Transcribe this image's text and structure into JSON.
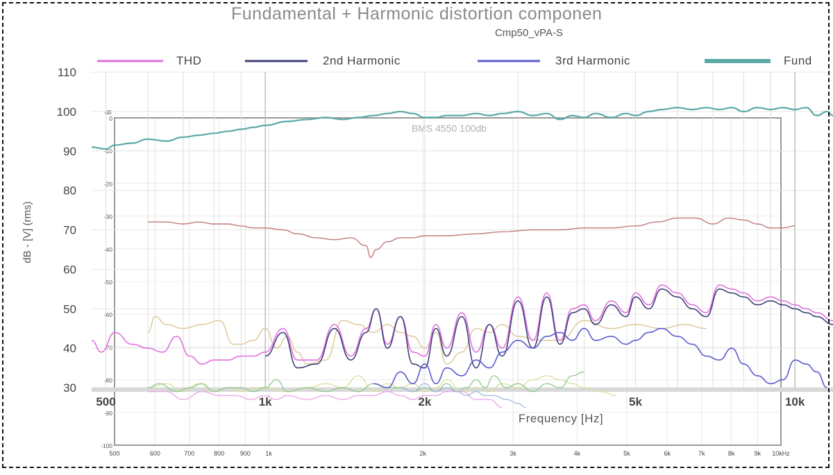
{
  "chart_data": [
    {
      "type": "line",
      "title": "Fundamental + Harmonic distortion componen",
      "subtitle": "Cmp50_vPA-S",
      "xlabel": "Frequency [Hz]",
      "ylabel": "dB - [V] (rms)",
      "x_scale": "log",
      "xlim": [
        470,
        11800
      ],
      "ylim": [
        29,
        110
      ],
      "y_ticks": [
        30,
        40,
        50,
        60,
        70,
        80,
        90,
        100,
        110
      ],
      "x_tick_labels": [
        {
          "value": 500,
          "label": "500"
        },
        {
          "value": 1000,
          "label": "1k"
        },
        {
          "value": 2000,
          "label": "2k"
        },
        {
          "value": 5000,
          "label": "5k"
        },
        {
          "value": 10000,
          "label": "10k"
        }
      ],
      "grid": true,
      "legend_position": "top",
      "series": [
        {
          "name": "THD",
          "color": "#e070e0",
          "x": [
            470,
            490,
            520,
            560,
            600,
            640,
            680,
            720,
            760,
            800,
            850,
            900,
            950,
            1000,
            1080,
            1150,
            1250,
            1350,
            1450,
            1550,
            1620,
            1700,
            1800,
            1900,
            2000,
            2100,
            2200,
            2350,
            2500,
            2650,
            2800,
            3000,
            3200,
            3400,
            3600,
            3800,
            4000,
            4200,
            4500,
            4800,
            5000,
            5300,
            5600,
            6000,
            6400,
            6800,
            7200,
            7600,
            8000,
            8500,
            9000,
            9500,
            10000,
            10500,
            11000,
            11800
          ],
          "y": [
            42,
            39,
            44,
            41,
            40,
            39,
            43,
            38,
            36,
            37,
            37,
            38,
            38,
            39,
            45,
            37,
            37,
            46,
            38,
            45,
            50,
            41,
            48,
            39,
            38,
            46,
            40,
            49,
            39,
            46,
            40,
            53,
            42,
            54,
            42,
            50,
            51,
            47,
            52,
            49,
            54,
            51,
            56,
            54,
            51,
            49,
            56,
            55,
            54,
            52,
            53,
            52,
            51,
            50,
            49,
            47
          ]
        },
        {
          "name": "2nd Harmonic",
          "color": "#3f3f7a",
          "x": [
            1000,
            1080,
            1150,
            1250,
            1350,
            1450,
            1550,
            1620,
            1700,
            1800,
            1900,
            2000,
            2100,
            2200,
            2350,
            2500,
            2650,
            2800,
            3000,
            3200,
            3400,
            3600,
            3800,
            4000,
            4200,
            4500,
            4800,
            5000,
            5300,
            5600,
            6000,
            6400,
            6800,
            7200,
            7600,
            8000,
            8500,
            9000,
            9500,
            10000,
            10500,
            11000,
            11800
          ],
          "y": [
            38,
            44,
            35,
            36,
            45,
            37,
            44,
            50,
            40,
            48,
            36,
            35,
            45,
            38,
            48,
            35,
            46,
            38,
            52,
            40,
            53,
            41,
            49,
            50,
            46,
            51,
            48,
            53,
            50,
            55,
            53,
            50,
            48,
            55,
            54,
            53,
            51,
            52,
            51,
            50,
            49,
            48,
            46
          ]
        },
        {
          "name": "3rd Harmonic",
          "color": "#5a5ad0",
          "x": [
            1600,
            1700,
            1800,
            1900,
            2000,
            2100,
            2200,
            2350,
            2500,
            2650,
            2800,
            3000,
            3200,
            3400,
            3600,
            3800,
            4000,
            4200,
            4500,
            4800,
            5000,
            5300,
            5600,
            6000,
            6400,
            6800,
            7200,
            7600,
            8000,
            8500,
            9000,
            9500,
            10000,
            10500,
            11000,
            11500
          ],
          "y": [
            31,
            30,
            34,
            31,
            36,
            31,
            35,
            33,
            37,
            35,
            39,
            42,
            40,
            43,
            44,
            42,
            45,
            42,
            43,
            41,
            42,
            44,
            45,
            43,
            41,
            38,
            37,
            40,
            36,
            33,
            31,
            32,
            37,
            36,
            34,
            30
          ]
        },
        {
          "name": "Fund",
          "color": "#5aa8a8",
          "x": [
            470,
            500,
            520,
            560,
            600,
            650,
            700,
            750,
            800,
            850,
            900,
            950,
            1000,
            1100,
            1200,
            1300,
            1400,
            1500,
            1600,
            1700,
            1800,
            1900,
            2000,
            2100,
            2200,
            2350,
            2500,
            2650,
            2800,
            3000,
            3200,
            3400,
            3600,
            3800,
            4000,
            4200,
            4500,
            4800,
            5000,
            5300,
            5600,
            6000,
            6400,
            6800,
            7200,
            7600,
            8000,
            8500,
            9000,
            9500,
            10000,
            10500,
            11000,
            11500,
            11800
          ],
          "y": [
            91,
            90.5,
            91.5,
            92,
            93,
            92.5,
            93.5,
            94,
            94.5,
            95,
            95.5,
            96,
            96.5,
            97.5,
            98,
            98.5,
            98,
            98.5,
            99,
            99.5,
            100,
            99.5,
            98.5,
            98.5,
            99,
            99,
            99.5,
            99,
            99.5,
            100,
            99,
            99.5,
            98,
            99,
            98.5,
            99.5,
            98.5,
            99.5,
            99,
            100,
            100.5,
            101,
            100.5,
            101,
            100.5,
            101,
            100,
            101,
            100.5,
            101,
            100.5,
            101,
            99,
            100,
            99
          ]
        },
        {
          "name": "",
          "color": "#b96c6c",
          "x": [
            600,
            650,
            700,
            750,
            800,
            850,
            900,
            950,
            1000,
            1080,
            1150,
            1250,
            1350,
            1450,
            1550,
            1580,
            1620,
            1700,
            1800,
            1900,
            2000,
            2200,
            2500,
            2800,
            3200,
            3600,
            4000,
            4500,
            5000,
            5500,
            6000,
            6500,
            7000,
            7500,
            8000,
            8500,
            9000,
            9500,
            10000
          ],
          "y": [
            72,
            72,
            71.5,
            72,
            71.5,
            71.5,
            71,
            70.5,
            70.5,
            70,
            69,
            68,
            67.5,
            68,
            66,
            63,
            65,
            67,
            68,
            68,
            68.5,
            68.5,
            69,
            69.5,
            70,
            70,
            70.5,
            70.5,
            71,
            72,
            73,
            73,
            71.5,
            73,
            72.5,
            71.5,
            70.5,
            70.5,
            71
          ]
        },
        {
          "name": "",
          "color": "#d8c088",
          "x": [
            600,
            620,
            650,
            700,
            760,
            820,
            870,
            900,
            950,
            1000,
            1050,
            1100,
            1150,
            1200,
            1300,
            1400,
            1500,
            1600,
            1700,
            1800,
            1900,
            2000,
            2100,
            2200,
            2350,
            2500,
            2650,
            2800,
            3000,
            3300,
            3600,
            4000,
            4500,
            5000,
            5600,
            6200,
            6800
          ],
          "y": [
            44,
            48,
            46,
            45,
            46,
            47,
            41,
            41,
            42,
            45,
            40,
            43,
            39,
            36,
            37,
            47,
            46,
            44,
            46,
            44,
            43,
            40,
            44,
            36,
            39,
            45,
            44,
            46,
            43,
            42,
            42,
            47,
            45,
            46,
            45,
            46,
            45
          ]
        },
        {
          "name": "",
          "color": "#d8e098",
          "x": [
            600,
            650,
            700,
            750,
            800,
            850,
            900,
            950,
            1000,
            1100,
            1200,
            1300,
            1400,
            1500,
            1600,
            1700,
            1800,
            1900,
            2000,
            2100,
            2200,
            2350,
            2500,
            2650,
            2800,
            3000,
            3200,
            3400,
            3600,
            3800,
            4000,
            4300,
            4600
          ],
          "y": [
            30,
            31,
            29,
            31,
            29,
            30,
            29,
            30,
            30,
            29,
            30,
            31,
            30,
            33,
            29,
            31,
            30,
            31,
            29,
            30,
            32,
            29,
            30,
            29,
            31,
            30,
            32,
            33,
            32,
            31,
            30,
            29,
            28
          ]
        },
        {
          "name": "",
          "color": "#88c888",
          "x": [
            600,
            630,
            680,
            720,
            760,
            800,
            850,
            900,
            950,
            1000,
            1050,
            1100,
            1200,
            1300,
            1400,
            1500,
            1600,
            1700,
            1800,
            1900,
            2000,
            2100,
            2200,
            2300,
            2400,
            2500,
            2600,
            2700,
            2850,
            3000,
            3200,
            3400,
            3600,
            3800,
            4000
          ],
          "y": [
            30,
            31,
            29,
            30,
            31,
            29,
            30,
            30,
            29,
            30,
            32,
            29,
            30,
            29,
            30,
            29,
            31,
            30,
            30,
            29,
            30,
            29,
            31,
            29,
            30,
            32,
            30,
            33,
            30,
            31,
            29,
            31,
            30,
            33,
            34
          ]
        },
        {
          "name": "",
          "color": "#e8a0e8",
          "x": [
            600,
            650,
            700,
            760,
            820,
            880,
            940,
            1000,
            1050,
            1100,
            1200,
            1300,
            1400,
            1500,
            1600,
            1700,
            1800,
            1900,
            2000,
            2100,
            2200,
            2350,
            2500,
            2650,
            2800
          ],
          "y": [
            29,
            29,
            27,
            29,
            28,
            28,
            27,
            28,
            27,
            28,
            27,
            28,
            27,
            28,
            28,
            29,
            28,
            27,
            28,
            28,
            29,
            29,
            27,
            27,
            25
          ]
        },
        {
          "name": "",
          "color": "#a0b4e0",
          "x": [
            1800,
            1900,
            2000,
            2100,
            2200,
            2300,
            2400,
            2500,
            2600,
            2700,
            2850,
            3000,
            3100
          ],
          "y": [
            30,
            29,
            31,
            29,
            30,
            29,
            28,
            29,
            28,
            28,
            27,
            26,
            25
          ]
        }
      ]
    },
    {
      "type": "line",
      "title": "BMS 4550 100db",
      "ylabel": "dB",
      "x_scale": "log",
      "xlim": [
        500,
        10000
      ],
      "ylim": [
        -100,
        0
      ],
      "y_tick_labels": [
        "0",
        "-10",
        "-20",
        "-30",
        "-40",
        "-50",
        "-60",
        "-70",
        "-80",
        "-90",
        "-100"
      ],
      "x_tick_labels": [
        "500",
        "600",
        "700",
        "800",
        "900",
        "1k",
        "2k",
        "3k",
        "4k",
        "5k",
        "6k",
        "7k",
        "8k",
        "9k",
        "10kHz"
      ],
      "grid": true
    }
  ]
}
